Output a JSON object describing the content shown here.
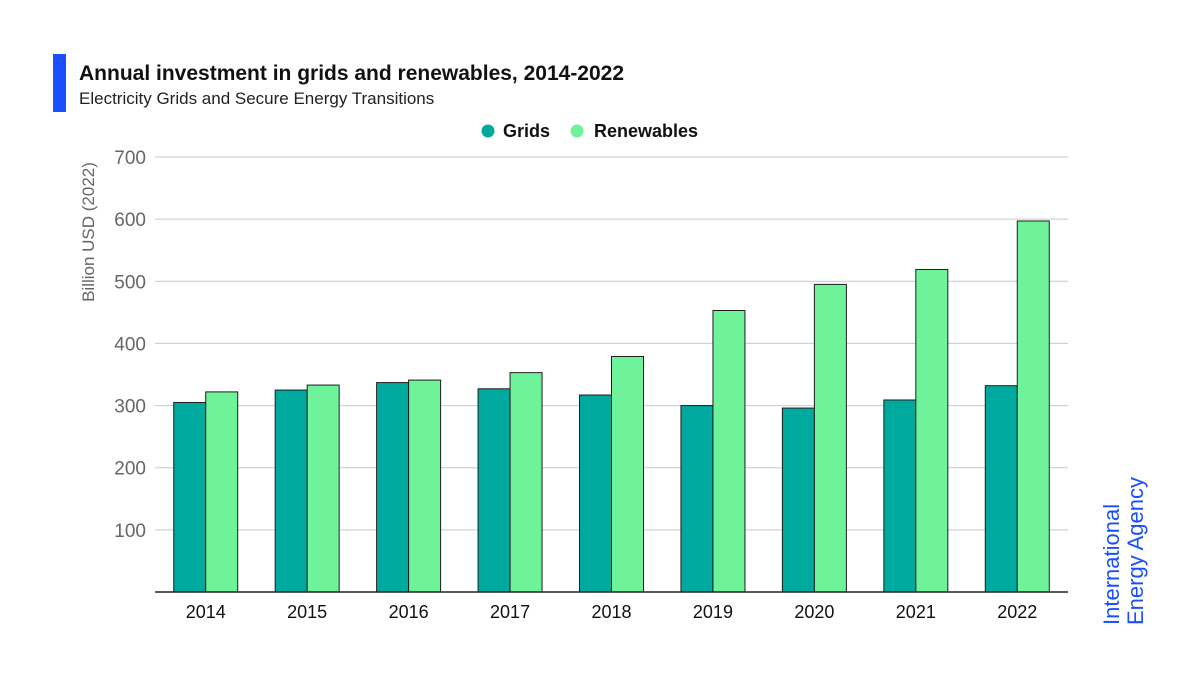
{
  "header": {
    "title": "Annual investment in grids and renewables, 2014-2022",
    "subtitle": "Electricity Grids and Secure Energy Transitions"
  },
  "branding": {
    "line1": "International",
    "line2": "Energy Agency",
    "color": "#1a4fff"
  },
  "chart_data": {
    "type": "bar",
    "categories": [
      "2014",
      "2015",
      "2016",
      "2017",
      "2018",
      "2019",
      "2020",
      "2021",
      "2022"
    ],
    "series": [
      {
        "name": "Grids",
        "color": "#00a99d",
        "values": [
          305,
          325,
          337,
          327,
          317,
          300,
          296,
          309,
          332
        ]
      },
      {
        "name": "Renewables",
        "color": "#6ef39a",
        "values": [
          322,
          333,
          341,
          353,
          379,
          453,
          495,
          519,
          597
        ]
      }
    ],
    "ylabel": "Billion USD (2022)",
    "ylim": [
      0,
      700
    ],
    "yticks": [
      100,
      200,
      300,
      400,
      500,
      600,
      700
    ],
    "grid": true,
    "legend_position": "top-center"
  }
}
